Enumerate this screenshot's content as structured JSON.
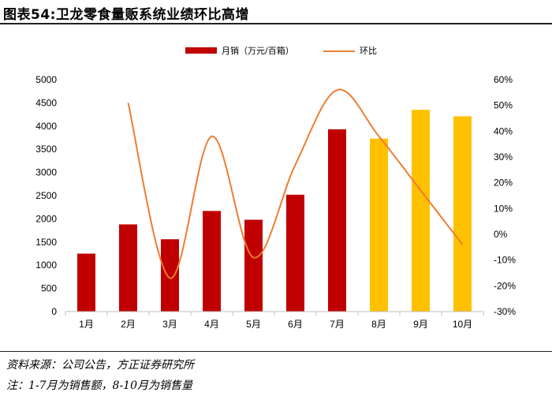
{
  "header": {
    "title": "图表54:卫龙零食量贩系统业绩环比高增"
  },
  "chart_data": {
    "type": "bar+line",
    "categories": [
      "1月",
      "2月",
      "3月",
      "4月",
      "5月",
      "6月",
      "7月",
      "8月",
      "9月",
      "10月"
    ],
    "series": [
      {
        "name": "月销（万元/百箱）",
        "type": "bar",
        "axis": "left",
        "values": [
          1250,
          1880,
          1560,
          2170,
          1980,
          2520,
          3930,
          3730,
          4350,
          4210
        ],
        "colors": [
          "#c00000",
          "#c00000",
          "#c00000",
          "#c00000",
          "#c00000",
          "#c00000",
          "#c00000",
          "#ffc000",
          "#ffc000",
          "#ffc000"
        ]
      },
      {
        "name": "环比",
        "type": "line",
        "axis": "right",
        "color": "#ed7d31",
        "values": [
          null,
          51,
          -17,
          38,
          -9,
          27,
          56,
          38,
          17,
          -4
        ]
      }
    ],
    "y_left": {
      "min": 0,
      "max": 5000,
      "step": 500,
      "tick_labels": [
        "0",
        "500",
        "1000",
        "1500",
        "2000",
        "2500",
        "3000",
        "3500",
        "4000",
        "4500",
        "5000"
      ]
    },
    "y_right": {
      "min": -30,
      "max": 60,
      "step": 10,
      "tick_labels": [
        "-30%",
        "-20%",
        "-10%",
        "0%",
        "10%",
        "20%",
        "30%",
        "40%",
        "50%",
        "60%"
      ]
    },
    "legend_position": "top",
    "grid": false
  },
  "footer": {
    "source": "资料来源：公司公告，方正证券研究所",
    "note": "注：1-7月为销售额，8-10月为销售量"
  }
}
